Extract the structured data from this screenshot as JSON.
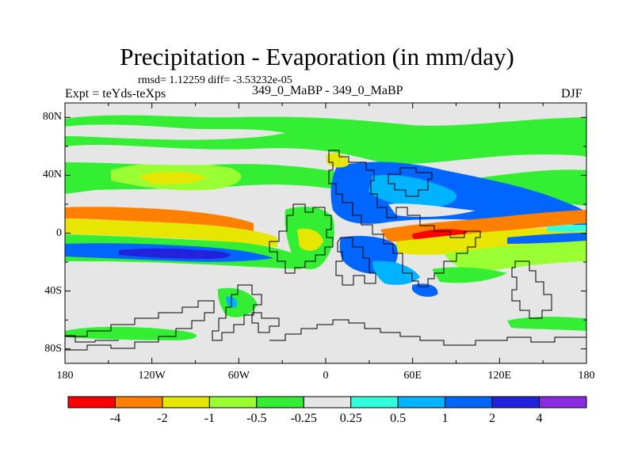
{
  "title": "Precipitation - Evaporation (in mm/day)",
  "stats": "rmsd= 1.12259 diff= -3.53232e-05",
  "experiment": "Expt = teYds-teXps",
  "comparison": "349_0_MaBP - 349_0_MaBP",
  "season": "DJF",
  "map": {
    "projection": "cylindrical-equidistant",
    "lon_range": [
      -180,
      180
    ],
    "lat_range": [
      -90,
      90
    ],
    "lon_ticks": [
      "180",
      "120W",
      "60W",
      "0",
      "60E",
      "120E",
      "180"
    ],
    "lat_ticks": [
      "80N",
      "40N",
      "0",
      "40S",
      "80S"
    ],
    "background_color": "#e6e6e6"
  },
  "colorbar": {
    "labels": [
      "-4",
      "-2",
      "-1",
      "-0.5",
      "-0.25",
      "0.25",
      "0.5",
      "1",
      "2",
      "4"
    ],
    "colors": [
      "#ff0000",
      "#ff8000",
      "#e6e600",
      "#99ff33",
      "#33ee33",
      "#e6e6e6",
      "#33ffdd",
      "#00b3ff",
      "#0066ff",
      "#2222dd",
      "#8a2be2"
    ]
  }
}
